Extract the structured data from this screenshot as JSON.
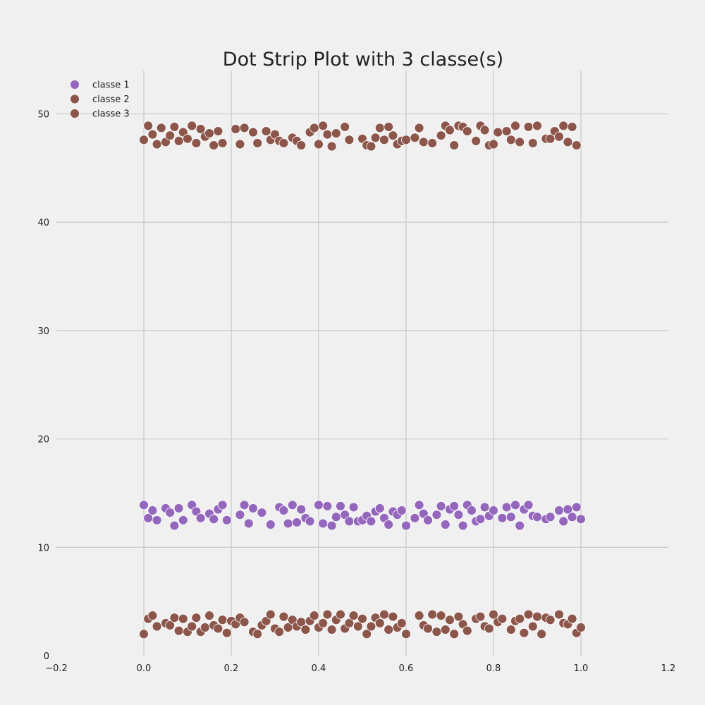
{
  "chart_data": {
    "type": "scatter",
    "title": "Dot Strip Plot with 3 classe(s)",
    "xlabel": "",
    "ylabel": "",
    "xlim": [
      -0.2,
      1.2
    ],
    "ylim": [
      0,
      54
    ],
    "x_ticks": [
      "−0.2",
      "0.0",
      "0.2",
      "0.4",
      "0.6",
      "0.8",
      "1.0",
      "1.2"
    ],
    "y_ticks": [
      "0",
      "10",
      "20",
      "30",
      "40",
      "50"
    ],
    "grid": true,
    "legend_position": "top-left",
    "series": [
      {
        "name": "classe 1",
        "color": "#9467bd",
        "x": [
          0.0,
          0.01,
          0.02,
          0.03,
          0.05,
          0.06,
          0.07,
          0.08,
          0.09,
          0.11,
          0.12,
          0.13,
          0.15,
          0.16,
          0.17,
          0.18,
          0.19,
          0.22,
          0.23,
          0.24,
          0.25,
          0.27,
          0.29,
          0.31,
          0.32,
          0.33,
          0.34,
          0.35,
          0.36,
          0.37,
          0.38,
          0.4,
          0.41,
          0.42,
          0.43,
          0.44,
          0.45,
          0.46,
          0.47,
          0.48,
          0.49,
          0.5,
          0.51,
          0.52,
          0.53,
          0.54,
          0.55,
          0.56,
          0.57,
          0.58,
          0.59,
          0.6,
          0.62,
          0.63,
          0.64,
          0.65,
          0.67,
          0.68,
          0.69,
          0.7,
          0.71,
          0.72,
          0.73,
          0.74,
          0.75,
          0.76,
          0.77,
          0.78,
          0.79,
          0.8,
          0.82,
          0.83,
          0.84,
          0.85,
          0.86,
          0.87,
          0.88,
          0.89,
          0.9,
          0.92,
          0.93,
          0.95,
          0.96,
          0.97,
          0.98,
          0.99,
          1.0
        ],
        "y": [
          13.9,
          12.7,
          13.4,
          12.5,
          13.6,
          13.2,
          12.0,
          13.6,
          12.5,
          13.9,
          13.3,
          12.7,
          13.1,
          12.6,
          13.5,
          13.9,
          12.5,
          13.0,
          13.9,
          12.2,
          13.6,
          13.2,
          12.1,
          13.7,
          13.4,
          12.2,
          13.9,
          12.3,
          13.5,
          12.7,
          12.4,
          13.9,
          12.2,
          13.8,
          12.0,
          12.8,
          13.8,
          13.0,
          12.4,
          13.7,
          12.4,
          12.5,
          12.9,
          12.4,
          13.3,
          13.6,
          12.7,
          12.1,
          13.3,
          13.0,
          13.4,
          12.0,
          12.7,
          13.9,
          13.1,
          12.5,
          13.0,
          13.8,
          12.1,
          13.5,
          13.8,
          13.0,
          12.0,
          13.9,
          13.4,
          12.4,
          12.6,
          13.7,
          12.9,
          13.4,
          12.7,
          13.7,
          12.8,
          13.9,
          12.0,
          13.5,
          13.9,
          12.9,
          12.8,
          12.6,
          12.8,
          13.4,
          12.4,
          13.5,
          12.8,
          13.7,
          12.6
        ]
      },
      {
        "name": "classe 2",
        "color": "#8c564b",
        "x": [
          0.0,
          0.01,
          0.02,
          0.03,
          0.04,
          0.05,
          0.06,
          0.07,
          0.08,
          0.09,
          0.1,
          0.11,
          0.12,
          0.13,
          0.14,
          0.15,
          0.16,
          0.17,
          0.18,
          0.21,
          0.22,
          0.23,
          0.25,
          0.26,
          0.28,
          0.29,
          0.3,
          0.31,
          0.32,
          0.34,
          0.35,
          0.36,
          0.38,
          0.39,
          0.4,
          0.41,
          0.42,
          0.43,
          0.44,
          0.46,
          0.47,
          0.5,
          0.51,
          0.52,
          0.53,
          0.54,
          0.55,
          0.56,
          0.57,
          0.58,
          0.59,
          0.6,
          0.62,
          0.63,
          0.64,
          0.66,
          0.68,
          0.69,
          0.7,
          0.71,
          0.72,
          0.73,
          0.74,
          0.76,
          0.77,
          0.78,
          0.79,
          0.8,
          0.81,
          0.83,
          0.84,
          0.85,
          0.86,
          0.88,
          0.89,
          0.9,
          0.92,
          0.93,
          0.94,
          0.95,
          0.96,
          0.97,
          0.98,
          0.99
        ],
        "y": [
          47.6,
          48.9,
          48.1,
          47.2,
          48.7,
          47.4,
          48.0,
          48.8,
          47.5,
          48.3,
          47.7,
          48.9,
          47.3,
          48.6,
          47.9,
          48.2,
          47.1,
          48.4,
          47.3,
          48.6,
          47.2,
          48.7,
          48.3,
          47.3,
          48.4,
          47.6,
          48.1,
          47.5,
          47.3,
          47.8,
          47.5,
          47.1,
          48.3,
          48.7,
          47.2,
          48.9,
          48.1,
          47.0,
          48.2,
          48.8,
          47.6,
          47.7,
          47.1,
          47.0,
          47.8,
          48.7,
          47.6,
          48.8,
          48.0,
          47.2,
          47.5,
          47.6,
          47.8,
          48.7,
          47.4,
          47.3,
          48.0,
          48.9,
          48.5,
          47.1,
          48.9,
          48.8,
          48.4,
          47.5,
          48.9,
          48.5,
          47.1,
          47.2,
          48.3,
          48.4,
          47.6,
          48.9,
          47.4,
          48.8,
          47.3,
          48.9,
          47.7,
          47.7,
          48.4,
          47.9,
          48.9,
          47.4,
          48.8,
          47.1
        ]
      },
      {
        "name": "classe 3",
        "color": "#8c564b",
        "x": [
          0.0,
          0.01,
          0.02,
          0.03,
          0.05,
          0.06,
          0.07,
          0.08,
          0.09,
          0.1,
          0.11,
          0.12,
          0.13,
          0.14,
          0.15,
          0.16,
          0.17,
          0.18,
          0.19,
          0.2,
          0.21,
          0.22,
          0.23,
          0.25,
          0.26,
          0.27,
          0.28,
          0.29,
          0.3,
          0.31,
          0.32,
          0.33,
          0.34,
          0.35,
          0.36,
          0.37,
          0.38,
          0.39,
          0.4,
          0.41,
          0.42,
          0.43,
          0.44,
          0.45,
          0.46,
          0.47,
          0.48,
          0.49,
          0.5,
          0.51,
          0.52,
          0.53,
          0.54,
          0.55,
          0.56,
          0.57,
          0.58,
          0.59,
          0.6,
          0.63,
          0.64,
          0.65,
          0.66,
          0.67,
          0.68,
          0.69,
          0.7,
          0.71,
          0.72,
          0.73,
          0.74,
          0.76,
          0.77,
          0.78,
          0.79,
          0.8,
          0.81,
          0.82,
          0.84,
          0.85,
          0.86,
          0.87,
          0.88,
          0.89,
          0.9,
          0.91,
          0.92,
          0.93,
          0.95,
          0.96,
          0.97,
          0.98,
          0.99,
          1.0
        ],
        "y": [
          2.0,
          3.4,
          3.7,
          2.7,
          3.0,
          2.8,
          3.5,
          2.3,
          3.4,
          2.2,
          2.7,
          3.5,
          2.2,
          2.6,
          3.7,
          2.8,
          2.5,
          3.3,
          2.1,
          3.2,
          2.9,
          3.5,
          3.1,
          2.2,
          2.0,
          2.8,
          3.2,
          3.8,
          2.5,
          2.2,
          3.6,
          2.6,
          3.3,
          2.7,
          3.1,
          2.4,
          3.2,
          3.7,
          2.6,
          3.0,
          3.8,
          2.4,
          3.3,
          3.8,
          2.5,
          3.0,
          3.7,
          2.7,
          3.4,
          2.0,
          2.7,
          3.5,
          3.0,
          3.8,
          2.4,
          3.6,
          2.6,
          3.0,
          2.0,
          3.7,
          2.8,
          2.5,
          3.8,
          2.2,
          3.7,
          2.4,
          3.3,
          2.0,
          3.6,
          2.9,
          2.3,
          3.4,
          3.6,
          2.7,
          2.5,
          3.8,
          3.1,
          3.4,
          2.4,
          3.2,
          3.4,
          2.1,
          3.8,
          2.7,
          3.6,
          2.0,
          3.5,
          3.3,
          3.8,
          3.0,
          2.9,
          3.4,
          2.1,
          2.6
        ]
      }
    ]
  }
}
